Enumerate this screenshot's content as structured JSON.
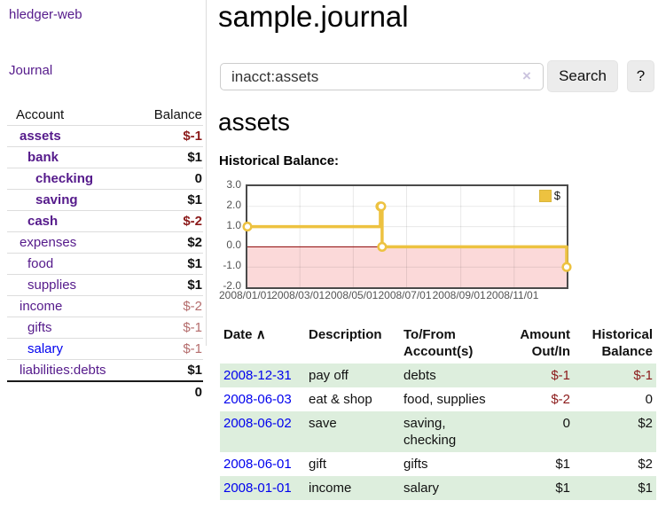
{
  "app": {
    "title": "hledger-web",
    "nav_journal": "Journal"
  },
  "colors": {
    "link_purple": "#551A8B",
    "link_blue": "#0000EE",
    "negative_red": "#8B1A1A",
    "negative_dim_red": "#B46C6C",
    "row_green": "#DDEEDD",
    "chart_gold": "#EDC240",
    "chart_negative_fill": "#FBD9D9",
    "chart_zero_line": "#8B0000"
  },
  "sidebar": {
    "accounts_header": {
      "account": "Account",
      "balance": "Balance"
    },
    "accounts": [
      {
        "label": "assets",
        "indent": 1,
        "bold": true,
        "blue": false,
        "balance": "$-1",
        "balance_class": "neg"
      },
      {
        "label": "bank",
        "indent": 2,
        "bold": true,
        "blue": false,
        "balance": "$1",
        "balance_class": ""
      },
      {
        "label": "checking",
        "indent": 3,
        "bold": true,
        "blue": false,
        "balance": "0",
        "balance_class": ""
      },
      {
        "label": "saving",
        "indent": 3,
        "bold": true,
        "blue": false,
        "balance": "$1",
        "balance_class": ""
      },
      {
        "label": "cash",
        "indent": 2,
        "bold": true,
        "blue": false,
        "balance": "$-2",
        "balance_class": "neg"
      },
      {
        "label": "expenses",
        "indent": 1,
        "bold": false,
        "blue": false,
        "balance": "$2",
        "balance_class": ""
      },
      {
        "label": "food",
        "indent": 2,
        "bold": false,
        "blue": false,
        "balance": "$1",
        "balance_class": ""
      },
      {
        "label": "supplies",
        "indent": 2,
        "bold": false,
        "blue": false,
        "balance": "$1",
        "balance_class": ""
      },
      {
        "label": "income",
        "indent": 1,
        "bold": false,
        "blue": false,
        "balance": "$-2",
        "balance_class": "dim"
      },
      {
        "label": "gifts",
        "indent": 2,
        "bold": false,
        "blue": false,
        "balance": "$-1",
        "balance_class": "dim"
      },
      {
        "label": "salary",
        "indent": 2,
        "bold": false,
        "blue": true,
        "balance": "$-1",
        "balance_class": "dim"
      },
      {
        "label": "liabilities:debts",
        "indent": 1,
        "bold": false,
        "blue": false,
        "balance": "$1",
        "balance_class": ""
      }
    ],
    "total": "0"
  },
  "main": {
    "title": "sample.journal",
    "search": {
      "value": "inacct:assets",
      "clear_icon": "×",
      "search_label": "Search",
      "help_label": "?"
    },
    "account_heading": "assets",
    "chart_heading": "Historical Balance:"
  },
  "chart_data": {
    "type": "line",
    "title": "Historical Balance",
    "series": [
      {
        "name": "$",
        "color": "#EDC240",
        "points": [
          [
            "2008-01-01",
            1
          ],
          [
            "2008-06-01",
            2
          ],
          [
            "2008-06-02",
            2
          ],
          [
            "2008-06-03",
            0
          ],
          [
            "2008-12-31",
            -1
          ]
        ]
      }
    ],
    "x_range": [
      "2008-01-01",
      "2008-12-31"
    ],
    "y_range": [
      -2,
      3
    ],
    "y_ticks": [
      "3.0",
      "2.0",
      "1.0",
      "0.0",
      "-1.0",
      "-2.0"
    ],
    "x_ticks": [
      {
        "pos": "2008-01-01",
        "label": "2008/01/01"
      },
      {
        "pos": "2008-03-01",
        "label": "2008/03/01"
      },
      {
        "pos": "2008-05-01",
        "label": "2008/05/01"
      },
      {
        "pos": "2008-07-01",
        "label": "2008/07/01"
      },
      {
        "pos": "2008-09-01",
        "label": "2008/09/01"
      },
      {
        "pos": "2008-11-01",
        "label": "2008/11/01"
      }
    ],
    "grid": true,
    "zero_line_color": "#8B0000",
    "negative_region_color": "#FBD9D9",
    "legend": {
      "label": "$",
      "position": "top-right"
    }
  },
  "register": {
    "columns": [
      "Date",
      "Description",
      "To/From Account(s)",
      "Amount Out/In",
      "Historical Balance"
    ],
    "sort_indicator": "∧",
    "rows": [
      {
        "date": "2008-12-31",
        "description": "pay off",
        "accounts": "debts",
        "amount": "$-1",
        "amount_negative": true,
        "balance": "$-1",
        "balance_negative": true
      },
      {
        "date": "2008-06-03",
        "description": "eat & shop",
        "accounts": "food, supplies",
        "amount": "$-2",
        "amount_negative": true,
        "balance": "0",
        "balance_negative": false
      },
      {
        "date": "2008-06-02",
        "description": "save",
        "accounts": "saving, checking",
        "amount": "0",
        "amount_negative": false,
        "balance": "$2",
        "balance_negative": false
      },
      {
        "date": "2008-06-01",
        "description": "gift",
        "accounts": "gifts",
        "amount": "$1",
        "amount_negative": false,
        "balance": "$2",
        "balance_negative": false
      },
      {
        "date": "2008-01-01",
        "description": "income",
        "accounts": "salary",
        "amount": "$1",
        "amount_negative": false,
        "balance": "$1",
        "balance_negative": false
      }
    ]
  }
}
